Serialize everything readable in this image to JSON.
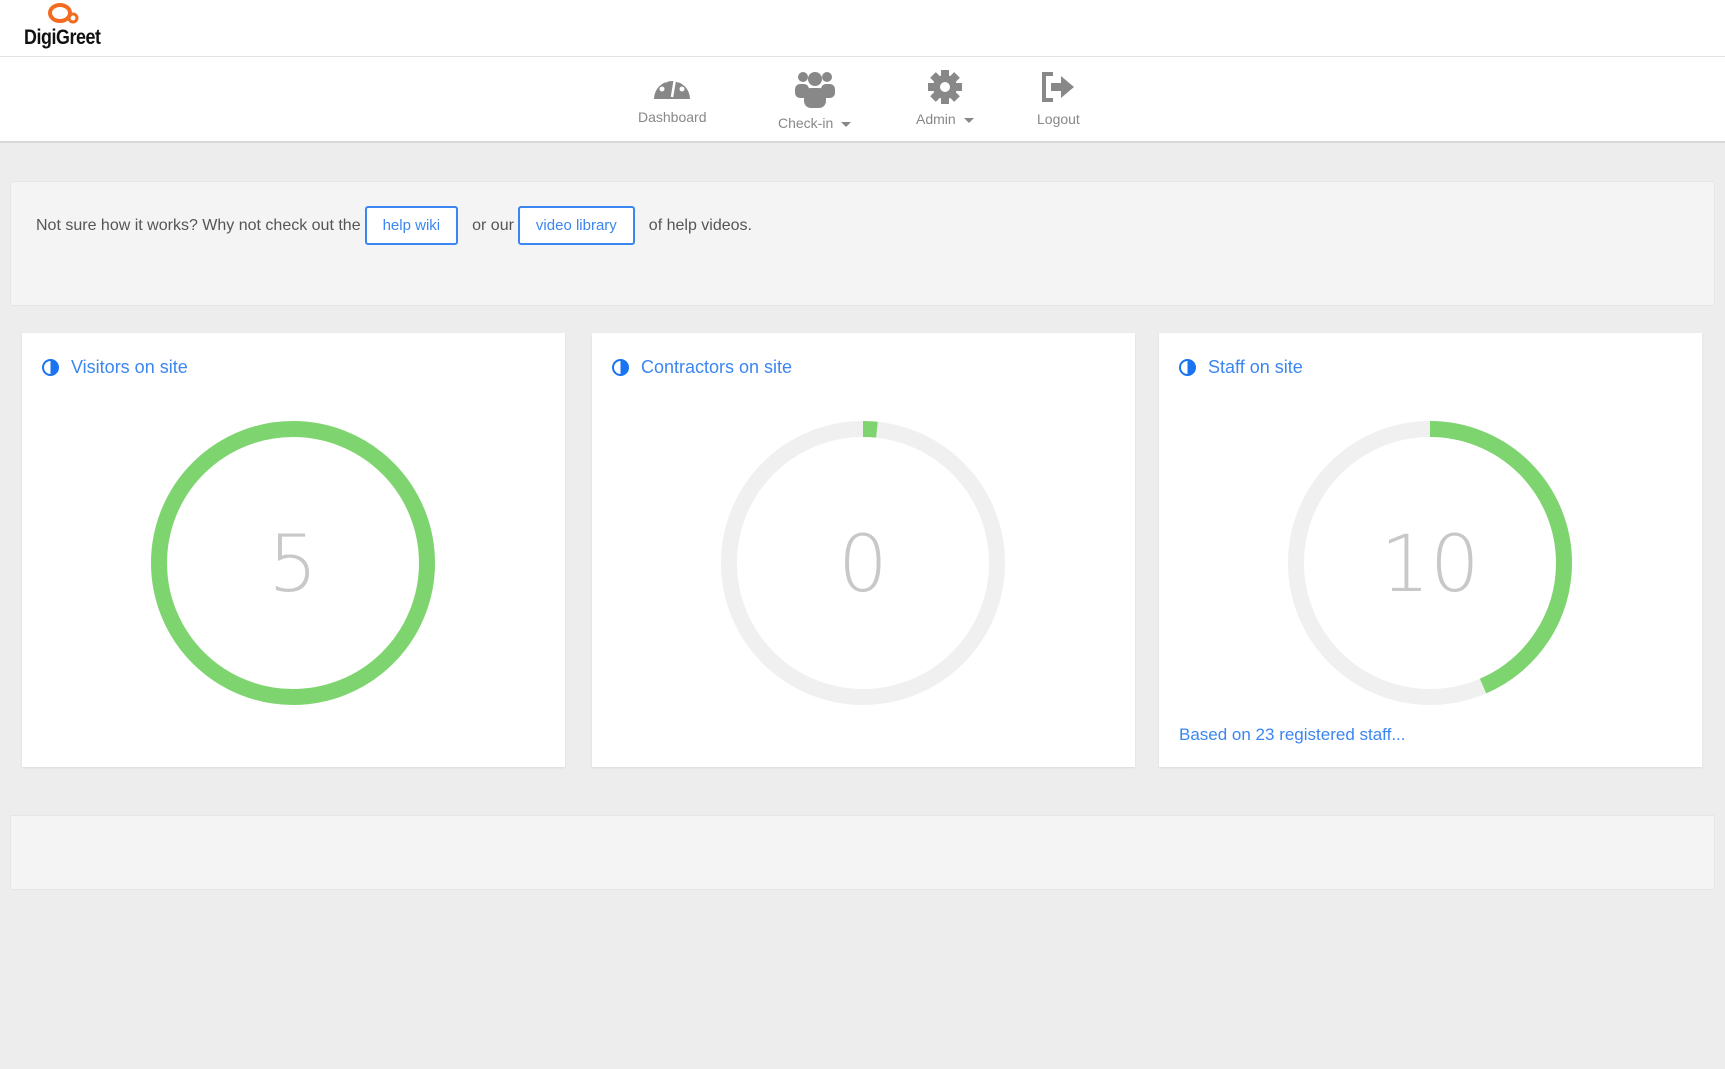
{
  "brand": {
    "name": "DigiGreet",
    "accent": "#f26b21"
  },
  "nav": [
    {
      "label": "Dashboard",
      "icon": "dashboard-gauge-icon",
      "dropdown": false
    },
    {
      "label": "Check-in",
      "icon": "users-icon",
      "dropdown": true
    },
    {
      "label": "Admin",
      "icon": "gear-icon",
      "dropdown": true
    },
    {
      "label": "Logout",
      "icon": "logout-icon",
      "dropdown": false
    }
  ],
  "banner": {
    "text_before": "Not sure how it works? Why not check out the",
    "help_wiki": "help wiki",
    "text_middle": "or our",
    "video_library": "video library",
    "text_after": "of help videos."
  },
  "cards": [
    {
      "title": "Visitors on site",
      "value": "5",
      "fill": 1.0,
      "footnote": ""
    },
    {
      "title": "Contractors on site",
      "value": "0",
      "fill": 0,
      "footnote": ""
    },
    {
      "title": "Staff on site",
      "value": "10",
      "fill": 0.435,
      "footnote": "Based on 23 registered staff..."
    }
  ],
  "colors": {
    "link": "#3b86f0",
    "gauge_fill": "#7ed56f",
    "gauge_track": "#f0f0f0"
  }
}
